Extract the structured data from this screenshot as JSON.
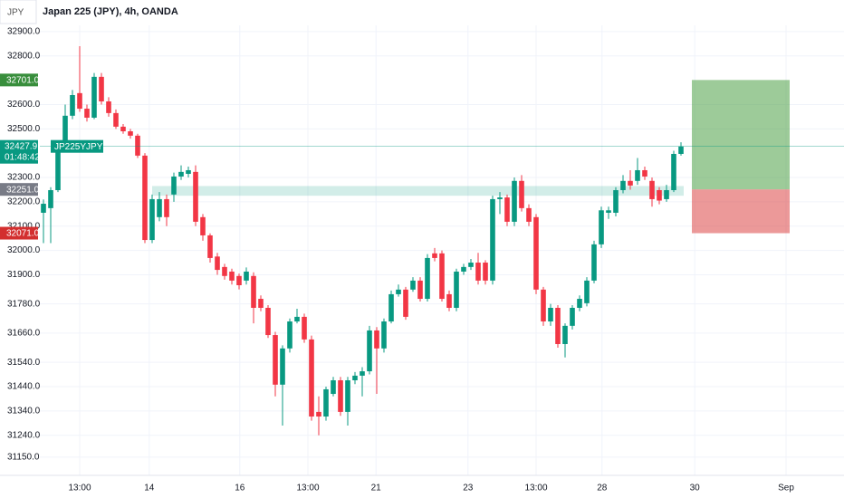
{
  "chart_data": {
    "type": "candlestick",
    "symbol": "JPY",
    "title": "Japan 225 (JPY), 4h, OANDA",
    "up_color": "#089981",
    "down_color": "#f23645",
    "open": [
      32155,
      32174,
      32248,
      32416,
      32554,
      32647,
      32583,
      32546,
      32714,
      32613,
      32565,
      32509,
      32490,
      32472,
      32390,
      32043,
      32137,
      32211,
      32230,
      32304,
      32315,
      32323,
      32137,
      32062,
      31975,
      31932,
      31913,
      31895,
      31876,
      31895,
      31801,
      31764,
      31652,
      31448,
      31597,
      31708,
      31727,
      31634,
      31336,
      31317,
      31410,
      31466,
      31336,
      31466,
      31485,
      31503,
      31671,
      31597,
      31708,
      31820,
      31839,
      31839,
      31876,
      31801,
      31988,
      31988,
      31820,
      31764,
      31913,
      31932,
      31950,
      31950,
      31876,
      32211,
      32218,
      32118,
      32286,
      32174,
      32137,
      31839,
      31708,
      31764,
      31615,
      31690,
      31764,
      31783,
      31876,
      32025,
      32155,
      32155,
      32248,
      32286,
      32286,
      32330,
      32286,
      32248,
      32211,
      32248,
      32397
    ],
    "high": [
      32210,
      32260,
      32430,
      32600,
      32660,
      32840,
      32600,
      32730,
      32730,
      32630,
      32580,
      32520,
      32500,
      32480,
      32400,
      32230,
      32240,
      32230,
      32320,
      32350,
      32345,
      32350,
      32150,
      32070,
      31990,
      31945,
      31925,
      31905,
      31930,
      31910,
      31815,
      31775,
      31665,
      31610,
      31720,
      31760,
      31740,
      31650,
      31400,
      31440,
      31480,
      31480,
      31480,
      31500,
      31520,
      31690,
      31685,
      31720,
      31835,
      31860,
      31850,
      31890,
      31890,
      31985,
      32010,
      32000,
      31835,
      31925,
      31945,
      31965,
      31990,
      31960,
      32225,
      32240,
      32230,
      32300,
      32310,
      32190,
      32150,
      31850,
      31780,
      31775,
      31700,
      31775,
      31815,
      31890,
      32040,
      32180,
      32180,
      32260,
      32310,
      32330,
      32380,
      32345,
      32300,
      32260,
      32270,
      32410,
      32445
    ],
    "low": [
      32030,
      32030,
      32240,
      32410,
      32540,
      32570,
      32530,
      32540,
      32600,
      32550,
      32500,
      32480,
      32460,
      32380,
      32030,
      32030,
      32120,
      32100,
      32200,
      32290,
      32300,
      32100,
      32040,
      31950,
      31900,
      31880,
      31860,
      31840,
      31860,
      31700,
      31750,
      31640,
      31400,
      31280,
      31580,
      31700,
      31620,
      31300,
      31240,
      31300,
      31400,
      31320,
      31280,
      31450,
      31400,
      31490,
      31410,
      31580,
      31700,
      31810,
      31715,
      31830,
      31790,
      31790,
      31955,
      31790,
      31750,
      31750,
      31900,
      31920,
      31860,
      31860,
      31860,
      32150,
      32100,
      32100,
      32160,
      32100,
      31820,
      31690,
      31690,
      31600,
      31560,
      31675,
      31750,
      31770,
      31865,
      32010,
      32130,
      32140,
      32235,
      32250,
      32270,
      32290,
      32180,
      32190,
      32200,
      32240,
      32390
    ],
    "close": [
      32192,
      32248,
      32416,
      32554,
      32639,
      32583,
      32546,
      32714,
      32613,
      32565,
      32509,
      32490,
      32472,
      32390,
      32043,
      32211,
      32211,
      32137,
      32304,
      32323,
      32330,
      32118,
      32062,
      31969,
      31920,
      31895,
      31876,
      31857,
      31913,
      31764,
      31764,
      31652,
      31448,
      31597,
      31708,
      31727,
      31634,
      31317,
      31317,
      31429,
      31466,
      31336,
      31466,
      31485,
      31503,
      31671,
      31597,
      31708,
      31820,
      31839,
      31727,
      31876,
      31801,
      31969,
      31969,
      31801,
      31764,
      31913,
      31932,
      31950,
      31876,
      31876,
      32211,
      32218,
      32118,
      32286,
      32174,
      32118,
      31839,
      31708,
      31764,
      31615,
      31690,
      31764,
      31801,
      31876,
      32025,
      32165,
      32165,
      32248,
      32286,
      32267,
      32330,
      32304,
      32211,
      32205,
      32248,
      32397,
      32427.9
    ],
    "ylim": [
      31075,
      33030
    ],
    "yticks": [
      {
        "value": 32900,
        "label": "32900.0"
      },
      {
        "value": 32800,
        "label": "32800.0"
      },
      {
        "value": 32600,
        "label": "32600.0"
      },
      {
        "value": 32500,
        "label": "32500.0"
      },
      {
        "value": 32300,
        "label": "32300.0"
      },
      {
        "value": 32200,
        "label": "32200.0"
      },
      {
        "value": 32100,
        "label": "32100.0"
      },
      {
        "value": 32000,
        "label": "32000.0"
      },
      {
        "value": 31900,
        "label": "31900.0"
      },
      {
        "value": 31780,
        "label": "31780.0"
      },
      {
        "value": 31660,
        "label": "31660.0"
      },
      {
        "value": 31540,
        "label": "31540.0"
      },
      {
        "value": 31440,
        "label": "31440.0"
      },
      {
        "value": 31340,
        "label": "31340.0"
      },
      {
        "value": 31240,
        "label": "31240.0"
      },
      {
        "value": 31150,
        "label": "31150.0"
      }
    ],
    "xlim": [
      -0.5,
      110.5
    ],
    "xticks": [
      {
        "value": 5,
        "label": "13:00"
      },
      {
        "value": 14.6,
        "label": "14"
      },
      {
        "value": 27.1,
        "label": "16"
      },
      {
        "value": 36.5,
        "label": "13:00"
      },
      {
        "value": 45.9,
        "label": "21"
      },
      {
        "value": 58.6,
        "label": "23"
      },
      {
        "value": 68,
        "label": "13:00"
      },
      {
        "value": 77.1,
        "label": "28"
      },
      {
        "value": 89.9,
        "label": "30"
      },
      {
        "value": 102.5,
        "label": "Sep"
      }
    ],
    "grid": true,
    "zone": {
      "x0": 15,
      "low": 32225,
      "high": 32265
    },
    "last_price": 32427.9,
    "last_symbol": "JP225YJPY",
    "countdown": "01:48:42",
    "position": {
      "target": {
        "value": 32701,
        "label": "32701.0"
      },
      "entry": {
        "value": 32251,
        "label": "32251.0"
      },
      "stop": {
        "value": 32071,
        "label": "32071.0"
      }
    }
  }
}
